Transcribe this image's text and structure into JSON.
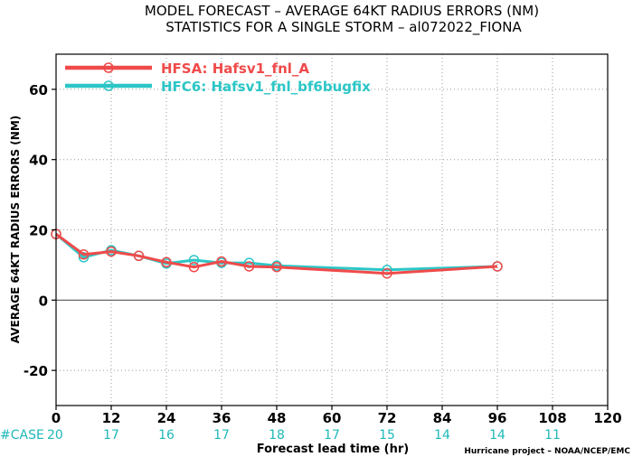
{
  "title": {
    "line1": "MODEL FORECAST – AVERAGE 64KT RADIUS ERRORS (NM)",
    "line2": "STATISTICS FOR A SINGLE STORM – al072022_FIONA"
  },
  "credit": "Hurricane project – NOAA/NCEP/EMC",
  "case_label": "#CASE",
  "colors": {
    "hfsa": "#f04a4a",
    "hfc6": "#2cc6c6",
    "case": "#1fb8b8",
    "zero_line": "#555555"
  },
  "chart_data": {
    "type": "line",
    "title": "MODEL FORECAST – AVERAGE 64KT RADIUS ERRORS (NM)",
    "subtitle": "STATISTICS FOR A SINGLE STORM – al072022_FIONA",
    "xlabel": "Forecast lead time (hr)",
    "ylabel": "AVERAGE 64KT RADIUS ERRORS (NM)",
    "xlim": [
      0,
      120
    ],
    "ylim": [
      -30,
      70
    ],
    "xticks": [
      0,
      12,
      24,
      36,
      48,
      60,
      72,
      84,
      96,
      108,
      120
    ],
    "yticks": [
      -20,
      0,
      20,
      40,
      60
    ],
    "grid": true,
    "legend": "top-left",
    "series": [
      {
        "name": "HFSA: Hafsv1_fnl_A",
        "color": "#f04a4a",
        "x": [
          0,
          6,
          12,
          18,
          24,
          30,
          36,
          42,
          48,
          72,
          96
        ],
        "y": [
          18.8,
          13.0,
          13.8,
          12.6,
          10.8,
          9.4,
          11.0,
          9.6,
          9.4,
          7.6,
          9.6
        ]
      },
      {
        "name": "HFC6: Hafsv1_fnl_bf6bugfix",
        "color": "#2cc6c6",
        "x": [
          0,
          6,
          12,
          18,
          24,
          30,
          36,
          42,
          48,
          72,
          96
        ],
        "y": [
          18.8,
          12.2,
          14.2,
          12.6,
          10.4,
          11.4,
          10.6,
          10.6,
          9.8,
          8.6,
          9.6
        ]
      }
    ],
    "case_counts": {
      "x": [
        0,
        12,
        24,
        36,
        48,
        60,
        72,
        84,
        96,
        108
      ],
      "values": [
        "20",
        "17",
        "16",
        "17",
        "18",
        "17",
        "15",
        "14",
        "14",
        "11"
      ]
    }
  }
}
